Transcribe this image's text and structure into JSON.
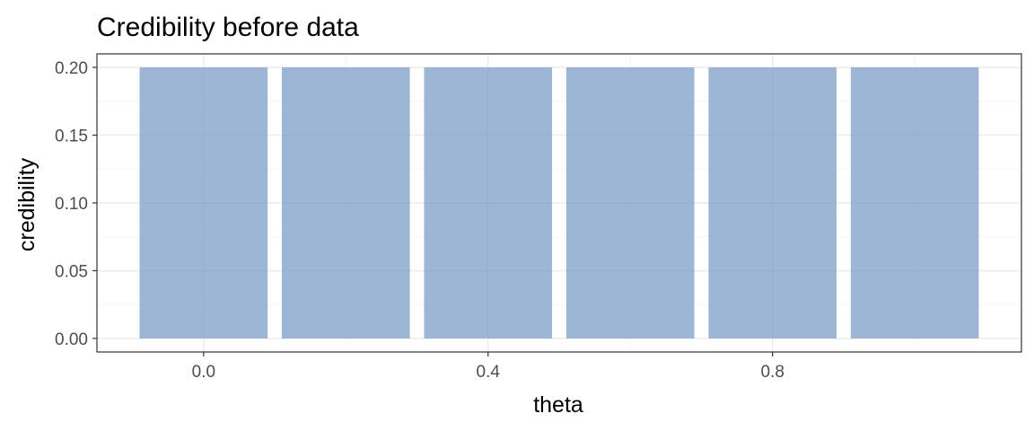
{
  "chart_data": {
    "type": "bar",
    "title": "Credibility before data",
    "xlabel": "theta",
    "ylabel": "credibility",
    "x": [
      0.0,
      0.2,
      0.4,
      0.6,
      0.8,
      1.0
    ],
    "values": [
      0.2,
      0.2,
      0.2,
      0.2,
      0.2,
      0.2
    ],
    "bar_width": 0.18,
    "xlim": [
      -0.15,
      1.15
    ],
    "ylim": [
      -0.01,
      0.21
    ],
    "x_ticks": [
      0.0,
      0.4,
      0.8
    ],
    "x_tick_labels": [
      "0.0",
      "0.4",
      "0.8"
    ],
    "y_ticks": [
      0.0,
      0.05,
      0.1,
      0.15,
      0.2
    ],
    "y_tick_labels": [
      "0.00",
      "0.05",
      "0.10",
      "0.15",
      "0.20"
    ],
    "grid": true,
    "legend": "none",
    "colors": {
      "bar": "#7b9ec6",
      "panel_border": "#333333",
      "grid_major": "#ebebeb",
      "grid_minor": "#f5f5f5"
    }
  }
}
